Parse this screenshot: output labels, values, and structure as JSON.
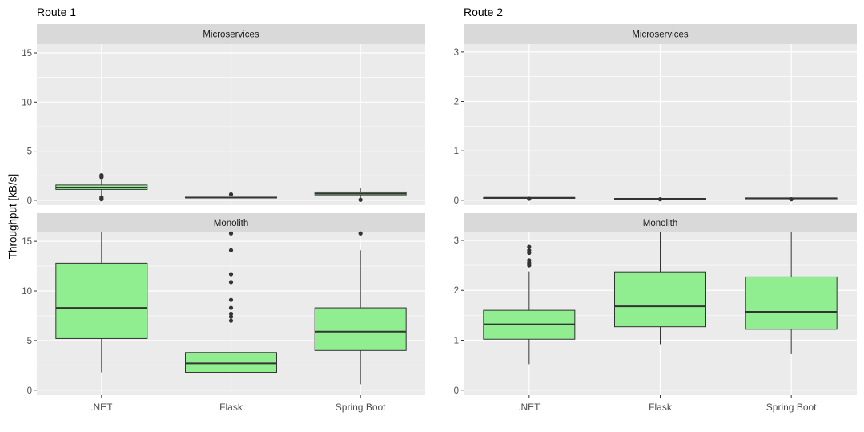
{
  "ylabel": "Throughput [kB/s]",
  "colors": {
    "panel_bg": "#ebebeb",
    "strip_bg": "#d9d9d9",
    "grid": "#ffffff",
    "box_fill": "#90ee90",
    "line": "#333333",
    "tick_text": "#4d4d4d"
  },
  "chart_data": [
    {
      "type": "boxplot",
      "title": "Route 1",
      "categories": [
        ".NET",
        "Flask",
        "Spring Boot"
      ],
      "ylabel": "Throughput [kB/s]",
      "facets": [
        {
          "label": "Microservices",
          "ylim": [
            -0.5,
            15.9
          ],
          "yticks": [
            0,
            5,
            10,
            15
          ],
          "boxes": [
            {
              "category": ".NET",
              "whisker_low": 0.45,
              "q1": 1.1,
              "median": 1.3,
              "q3": 1.55,
              "whisker_high": 2.1,
              "outliers": [
                0.1,
                0.2,
                0.3,
                2.35,
                2.45,
                2.55
              ]
            },
            {
              "category": "Flask",
              "whisker_low": 0.2,
              "q1": 0.25,
              "median": 0.28,
              "q3": 0.32,
              "whisker_high": 0.4,
              "outliers": [
                0.6
              ]
            },
            {
              "category": "Spring Boot",
              "whisker_low": 0.2,
              "q1": 0.55,
              "median": 0.7,
              "q3": 0.85,
              "whisker_high": 1.25,
              "outliers": [
                0.05
              ]
            }
          ]
        },
        {
          "label": "Monolith",
          "ylim": [
            -0.5,
            15.9
          ],
          "yticks": [
            0,
            5,
            10,
            15
          ],
          "boxes": [
            {
              "category": ".NET",
              "whisker_low": 1.8,
              "q1": 5.2,
              "median": 8.3,
              "q3": 12.8,
              "whisker_high": 15.9,
              "outliers": []
            },
            {
              "category": "Flask",
              "whisker_low": 1.2,
              "q1": 1.8,
              "median": 2.7,
              "q3": 3.8,
              "whisker_high": 6.8,
              "outliers": [
                7.0,
                7.4,
                7.7,
                8.3,
                9.1,
                10.9,
                11.7,
                14.1,
                15.8
              ]
            },
            {
              "category": "Spring Boot",
              "whisker_low": 0.6,
              "q1": 4.0,
              "median": 5.9,
              "q3": 8.3,
              "whisker_high": 14.1,
              "outliers": [
                15.8
              ]
            }
          ]
        }
      ]
    },
    {
      "type": "boxplot",
      "title": "Route 2",
      "categories": [
        ".NET",
        "Flask",
        "Spring Boot"
      ],
      "ylabel": "Throughput [kB/s]",
      "facets": [
        {
          "label": "Microservices",
          "ylim": [
            -0.1,
            3.16
          ],
          "yticks": [
            0,
            1,
            2,
            3
          ],
          "boxes": [
            {
              "category": ".NET",
              "whisker_low": 0.04,
              "q1": 0.045,
              "median": 0.05,
              "q3": 0.055,
              "whisker_high": 0.06,
              "outliers": [
                0.03
              ]
            },
            {
              "category": "Flask",
              "whisker_low": 0.02,
              "q1": 0.025,
              "median": 0.03,
              "q3": 0.035,
              "whisker_high": 0.04,
              "outliers": [
                0.02
              ]
            },
            {
              "category": "Spring Boot",
              "whisker_low": 0.03,
              "q1": 0.035,
              "median": 0.04,
              "q3": 0.045,
              "whisker_high": 0.05,
              "outliers": [
                0.02
              ]
            }
          ]
        },
        {
          "label": "Monolith",
          "ylim": [
            -0.1,
            3.16
          ],
          "yticks": [
            0,
            1,
            2,
            3
          ],
          "boxes": [
            {
              "category": ".NET",
              "whisker_low": 0.52,
              "q1": 1.02,
              "median": 1.32,
              "q3": 1.6,
              "whisker_high": 2.38,
              "outliers": [
                2.5,
                2.55,
                2.6,
                2.75,
                2.8,
                2.87
              ]
            },
            {
              "category": "Flask",
              "whisker_low": 0.92,
              "q1": 1.27,
              "median": 1.68,
              "q3": 2.37,
              "whisker_high": 3.16,
              "outliers": []
            },
            {
              "category": "Spring Boot",
              "whisker_low": 0.72,
              "q1": 1.22,
              "median": 1.57,
              "q3": 2.27,
              "whisker_high": 3.16,
              "outliers": []
            }
          ]
        }
      ]
    }
  ]
}
